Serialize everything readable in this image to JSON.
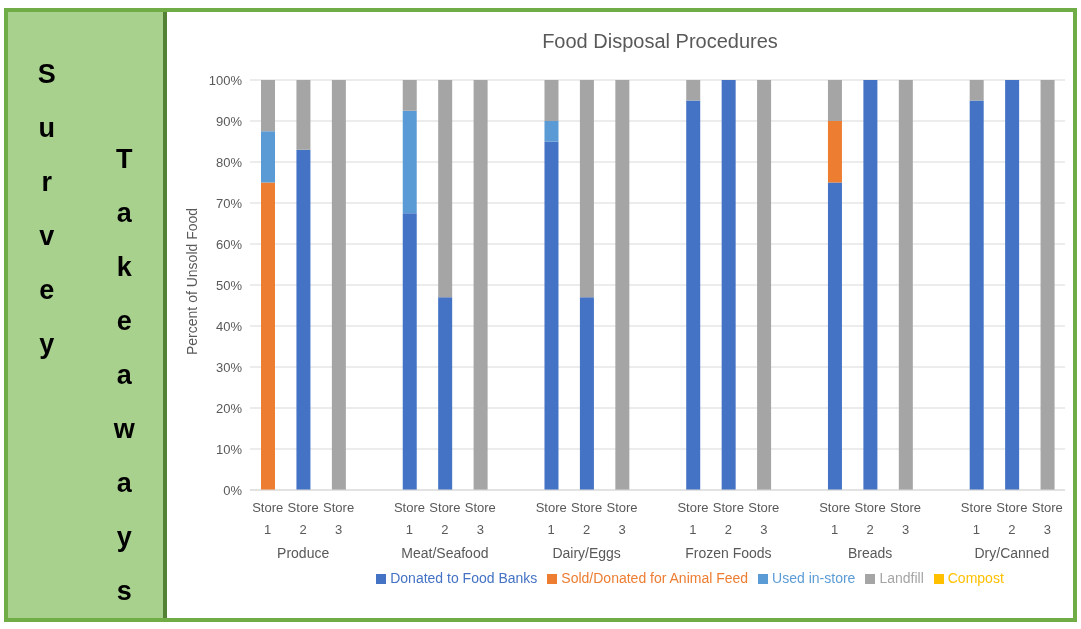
{
  "chart_data": {
    "type": "bar",
    "title": "Food Disposal Procedures",
    "ylabel": "Percent of Unsold Food",
    "stacked": true,
    "grid": "y",
    "legend": "bottom",
    "annotations": [
      "Survey",
      "Takeaways",
      "Produce",
      "Meat/Seafood",
      "Dairy/Eggs",
      "Frozen Foods",
      "Breads",
      "Dry/Canned"
    ],
    "categories": [
      "Store 1",
      "Store 2",
      "Store 3",
      null,
      "Store 1",
      "Store 2",
      "Store 3",
      null,
      "Store 1",
      "Store 2",
      "Store 3",
      null,
      "Store 1",
      "Store 2",
      "Store 3",
      null,
      "Store 1",
      "Store 2",
      "Store 3",
      null,
      "Store 1",
      "Store 2",
      "Store 3"
    ],
    "ylim": [
      0,
      100
    ],
    "yticks": [
      {
        "value": 0,
        "label": "0%"
      },
      {
        "value": 10,
        "label": "10%"
      },
      {
        "value": 20,
        "label": "20%"
      },
      {
        "value": 30,
        "label": "30%"
      },
      {
        "value": 40,
        "label": "40%"
      },
      {
        "value": 50,
        "label": "50%"
      },
      {
        "value": 60,
        "label": "60%"
      },
      {
        "value": 70,
        "label": "70%"
      },
      {
        "value": 80,
        "label": "80%"
      },
      {
        "value": 90,
        "label": "90%"
      },
      {
        "value": 100,
        "label": "100%"
      }
    ],
    "series": [
      {
        "name": "Donated to Food Banks",
        "color": "#4472c4",
        "values": [
          0,
          83,
          0,
          null,
          67.5,
          47,
          0,
          null,
          85,
          47,
          0,
          null,
          95,
          100,
          0,
          null,
          75,
          100,
          0,
          null,
          95,
          100,
          0
        ]
      },
      {
        "name": "Sold/Donated for Animal Feed",
        "color": "#ed7d31",
        "values": [
          75,
          0,
          0,
          null,
          0,
          0,
          0,
          null,
          0,
          0,
          0,
          null,
          0,
          0,
          0,
          null,
          15,
          0,
          0,
          null,
          0,
          0,
          0
        ]
      },
      {
        "name": "Used in-store",
        "color": "#5b9bd5",
        "values": [
          12.5,
          0,
          0,
          null,
          25,
          0,
          0,
          null,
          5,
          0,
          0,
          null,
          0,
          0,
          0,
          null,
          0,
          0,
          0,
          null,
          0,
          0,
          0
        ]
      },
      {
        "name": "Landfill",
        "color": "#a5a5a5",
        "values": [
          12.5,
          17,
          100,
          null,
          7.5,
          53,
          100,
          null,
          10,
          53,
          100,
          null,
          5,
          0,
          100,
          null,
          10,
          0,
          100,
          null,
          5,
          0,
          100
        ]
      },
      {
        "name": "Compost",
        "color": "#ffc000",
        "values": [
          0,
          0,
          0,
          null,
          0,
          0,
          0,
          null,
          0,
          0,
          0,
          null,
          0,
          0,
          0,
          null,
          0,
          0,
          0,
          null,
          0,
          0,
          0
        ]
      }
    ]
  }
}
